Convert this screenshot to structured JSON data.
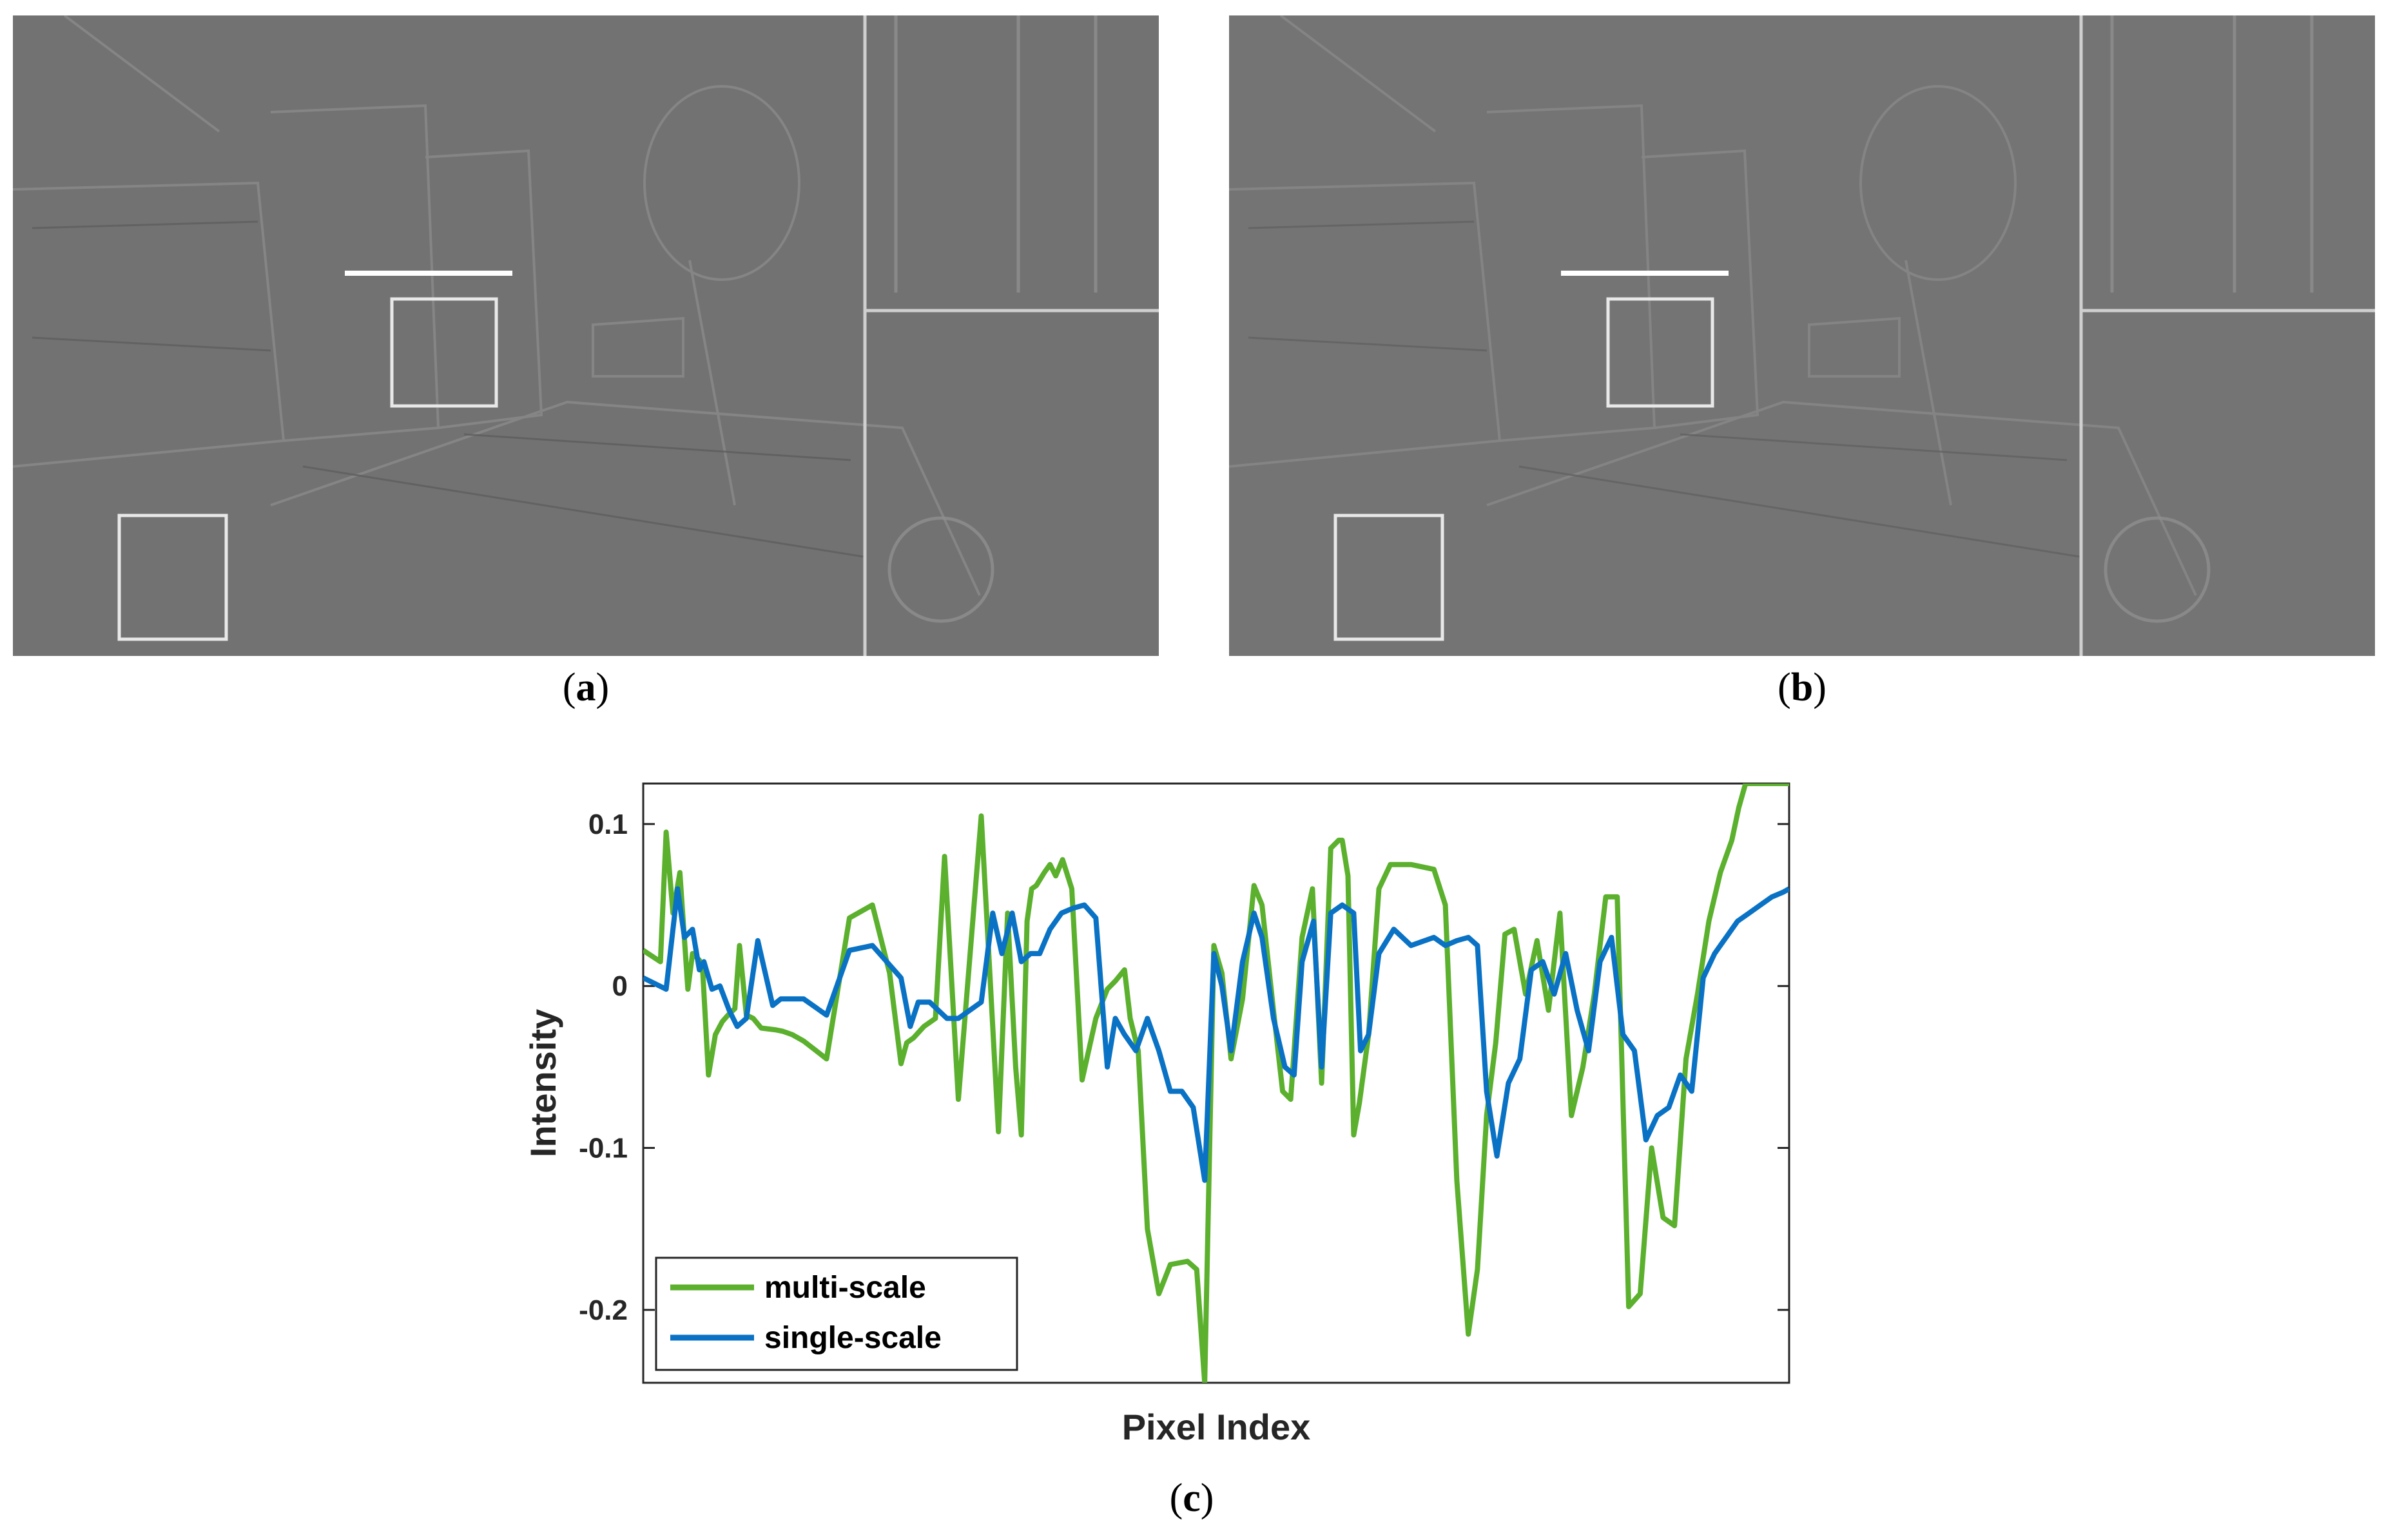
{
  "panels": [
    {
      "id": "a",
      "letter": "a"
    },
    {
      "id": "b",
      "letter": "b"
    }
  ],
  "panel_c_letter": "c",
  "colors": {
    "multi_scale": "#5bb02d",
    "single_scale": "#0a72c4",
    "photo_bg": "#727272"
  },
  "chart_data": {
    "type": "line",
    "title": "",
    "xlabel": "Pixel Index",
    "ylabel": "Intensity",
    "ylim": [
      -0.245,
      0.125
    ],
    "xlim": [
      0,
      100
    ],
    "yticks": [
      0.1,
      0,
      -0.1,
      -0.2
    ],
    "ytick_labels": [
      "0.1",
      "0",
      "-0.1",
      "-0.2"
    ],
    "grid": false,
    "legend_position": "bottom-left",
    "series": [
      {
        "name": "multi-scale",
        "color": "#5bb02d",
        "x": [
          0,
          1.5,
          2,
          2.6,
          3.2,
          3.9,
          4.3,
          4.9,
          5.2,
          5.7,
          6.3,
          6.9,
          7.4,
          8,
          8.4,
          9,
          9.6,
          10.3,
          11.5,
          12.2,
          13,
          14,
          16,
          18,
          20,
          21.5,
          22.5,
          23,
          23.6,
          24.5,
          25.5,
          26.3,
          27.5,
          29.5,
          31,
          31.8,
          32.5,
          33,
          33.5,
          33.9,
          34.3,
          35,
          35.5,
          36,
          36.6,
          37.4,
          38.3,
          39.5,
          40.5,
          41.2,
          42,
          42.5,
          43.2,
          44,
          45,
          46,
          47.5,
          48.3,
          49,
          49.8,
          50.5,
          51.3,
          52.3,
          53.3,
          54,
          55,
          55.8,
          56.5,
          57.5,
          58.4,
          59.2,
          60,
          60.7,
          61,
          61.5,
          62,
          62.5,
          63.3,
          64.2,
          65.2,
          67,
          69,
          70,
          71,
          72,
          72.8,
          73.6,
          74.4,
          75.2,
          76,
          77,
          78,
          79,
          80,
          81,
          82,
          83,
          84,
          85,
          86,
          87,
          88,
          89,
          90,
          91,
          92,
          93,
          94,
          95,
          95.6,
          96.2,
          97,
          98,
          99,
          100
        ],
        "y": [
          0.022,
          0.015,
          0.095,
          0.045,
          0.07,
          -0.002,
          0.02,
          0.016,
          0.008,
          -0.055,
          -0.03,
          -0.022,
          -0.018,
          -0.014,
          0.025,
          -0.018,
          -0.02,
          -0.026,
          -0.027,
          -0.028,
          -0.03,
          -0.034,
          -0.045,
          0.042,
          0.05,
          0.008,
          -0.048,
          -0.035,
          -0.032,
          -0.025,
          -0.02,
          0.08,
          -0.07,
          0.105,
          -0.09,
          0.045,
          -0.05,
          -0.092,
          0.04,
          0.06,
          0.062,
          0.07,
          0.075,
          0.068,
          0.078,
          0.06,
          -0.058,
          -0.02,
          -0.002,
          0.003,
          0.01,
          -0.02,
          -0.04,
          -0.15,
          -0.19,
          -0.172,
          -0.17,
          -0.175,
          -0.245,
          0.025,
          0.008,
          -0.045,
          -0.008,
          0.062,
          0.05,
          -0.015,
          -0.065,
          -0.07,
          0.03,
          0.06,
          -0.06,
          0.085,
          0.09,
          0.09,
          0.068,
          -0.092,
          -0.072,
          -0.03,
          0.06,
          0.075,
          0.075,
          0.072,
          0.05,
          -0.12,
          -0.215,
          -0.175,
          -0.08,
          -0.035,
          0.032,
          0.035,
          -0.005,
          0.028,
          -0.015,
          0.045,
          -0.08,
          -0.05,
          -0.005,
          0.055,
          0.055,
          -0.198,
          -0.19,
          -0.1,
          -0.143,
          -0.148,
          -0.045,
          -0.005,
          0.04,
          0.07,
          0.09,
          0.11,
          0.125,
          0.125,
          0.125,
          0.125,
          0.125
        ],
        "note_visible_end": 100
      },
      {
        "name": "single-scale",
        "color": "#0a72c4",
        "x": [
          0,
          2,
          3,
          3.6,
          4.3,
          4.9,
          5.3,
          6,
          6.7,
          7.5,
          8.2,
          9,
          10,
          11.3,
          12,
          13,
          14,
          16,
          18,
          20,
          22.5,
          23.3,
          24,
          25,
          26.5,
          27.5,
          29.5,
          30.5,
          31.3,
          32.2,
          33,
          33.8,
          34.6,
          35.5,
          36.5,
          37.5,
          38.5,
          39.5,
          40.5,
          41.2,
          42,
          43,
          44,
          45,
          46,
          47,
          48,
          49,
          49.8,
          50.5,
          51.3,
          52.3,
          53.3,
          54,
          55,
          56,
          56.8,
          57.5,
          58.5,
          59.2,
          60,
          61,
          62,
          62.6,
          63.3,
          64.2,
          65.5,
          67,
          69,
          70,
          71,
          72,
          72.8,
          73.6,
          74.5,
          75.5,
          76.5,
          77.5,
          78.5,
          79.5,
          80.5,
          81.5,
          82.5,
          83.5,
          84.5,
          85.5,
          86.5,
          87.5,
          88.5,
          89.5,
          90.5,
          91.5,
          92.5,
          93.5,
          94.5,
          95.5,
          96.5,
          97.5,
          98.5,
          99.5,
          100
        ],
        "y": [
          0.005,
          -0.002,
          0.06,
          0.03,
          0.035,
          0.01,
          0.015,
          -0.002,
          0.0,
          -0.015,
          -0.025,
          -0.02,
          0.028,
          -0.012,
          -0.008,
          -0.008,
          -0.008,
          -0.018,
          0.022,
          0.025,
          0.005,
          -0.025,
          -0.01,
          -0.01,
          -0.02,
          -0.02,
          -0.01,
          0.045,
          0.02,
          0.045,
          0.015,
          0.02,
          0.02,
          0.035,
          0.045,
          0.048,
          0.05,
          0.042,
          -0.05,
          -0.02,
          -0.03,
          -0.04,
          -0.02,
          -0.04,
          -0.065,
          -0.065,
          -0.075,
          -0.12,
          0.02,
          0.0,
          -0.04,
          0.015,
          0.045,
          0.03,
          -0.02,
          -0.05,
          -0.055,
          0.015,
          0.04,
          -0.05,
          0.045,
          0.05,
          0.045,
          -0.04,
          -0.03,
          0.02,
          0.035,
          0.025,
          0.03,
          0.025,
          0.028,
          0.03,
          0.025,
          -0.065,
          -0.105,
          -0.06,
          -0.045,
          0.01,
          0.015,
          -0.005,
          0.02,
          -0.015,
          -0.04,
          0.015,
          0.03,
          -0.03,
          -0.04,
          -0.095,
          -0.08,
          -0.075,
          -0.055,
          -0.065,
          0.005,
          0.02,
          0.03,
          0.04,
          0.045,
          0.05,
          0.055,
          0.058,
          0.06
        ]
      }
    ]
  }
}
